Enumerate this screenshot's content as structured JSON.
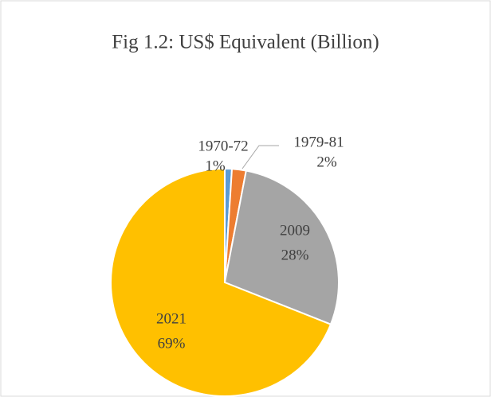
{
  "chart_data": {
    "type": "pie",
    "title": "Fig 1.2: US$ Equivalent (Billion)",
    "categories": [
      "1970-72",
      "1979-81",
      "2009",
      "2021"
    ],
    "values": [
      1,
      2,
      28,
      69
    ],
    "value_labels": [
      "1%",
      "2%",
      "28%",
      "69%"
    ],
    "colors": [
      "#5b9bd5",
      "#ed7d31",
      "#a5a5a5",
      "#ffc000"
    ]
  }
}
